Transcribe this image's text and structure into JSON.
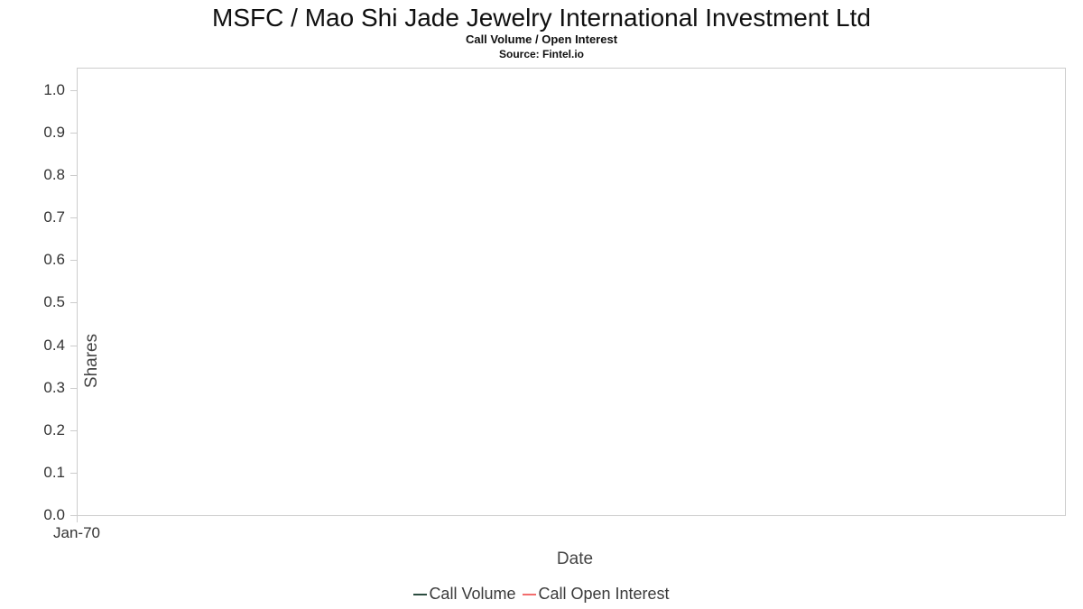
{
  "chart_data": {
    "type": "line",
    "title": "MSFC / Mao Shi Jade Jewelry International Investment Ltd",
    "subtitle": "Call Volume / Open Interest",
    "source": "Source: Fintel.io",
    "xlabel": "Date",
    "ylabel": "Shares",
    "x_ticks": [
      "Jan-70"
    ],
    "y_ticks": [
      "1.0",
      "0.9",
      "0.8",
      "0.7",
      "0.6",
      "0.5",
      "0.4",
      "0.3",
      "0.2",
      "0.1",
      "0.0"
    ],
    "ylim": [
      0.0,
      1.0
    ],
    "grid": false,
    "legend_position": "bottom",
    "series": [
      {
        "name": "Call Volume",
        "color": "#2b4c3f",
        "x": [],
        "values": []
      },
      {
        "name": "Call Open Interest",
        "color": "#f26d6d",
        "x": [],
        "values": []
      }
    ]
  }
}
